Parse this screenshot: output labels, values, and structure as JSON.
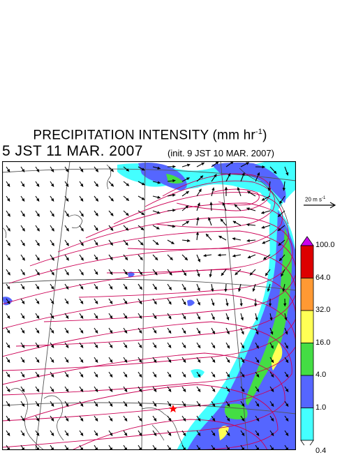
{
  "title": {
    "text": "PRECIPITATION INTENSITY (mm hr",
    "unit_exponent": "-1",
    "close": ")"
  },
  "valid_time": "5 JST 11 MAR. 2007",
  "init_time": "(init. 9 JST 10 MAR. 2007)",
  "wind_reference": {
    "value_text": "20 m s",
    "unit_exponent": "-1"
  },
  "colorbar": {
    "labels": [
      "100.0",
      "64.0",
      "32.0",
      "16.0",
      "4.0",
      "1.0",
      "0.4"
    ],
    "colors": [
      "#cc00ee",
      "#dd0000",
      "#ff9933",
      "#ffff55",
      "#44dd44",
      "#5566ff",
      "#44ffff",
      "#ffffff"
    ]
  },
  "map": {
    "contour_color": "#cc0055",
    "precip_colors": {
      "light": "#44ffff",
      "moderate": "#5566ff",
      "heavy": "#44dd44",
      "extreme": "#ffff55"
    },
    "marker": {
      "shape": "star",
      "color": "#ff0000"
    }
  }
}
